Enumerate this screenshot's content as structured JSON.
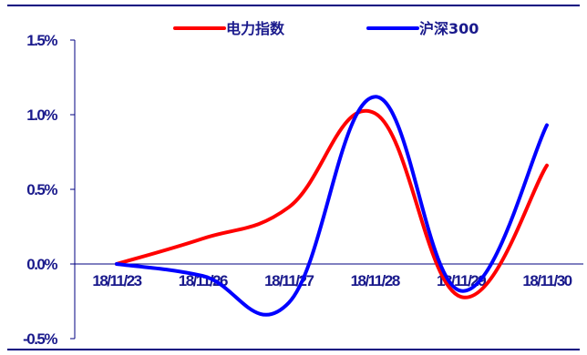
{
  "chart_data": {
    "type": "line",
    "categories": [
      "18/11/23",
      "18/11/26",
      "18/11/27",
      "18/11/28",
      "18/11/29",
      "18/11/30"
    ],
    "series": [
      {
        "name": "电力指数",
        "color": "#ff0000",
        "values": [
          0.0,
          0.17,
          0.38,
          1.01,
          -0.22,
          0.66
        ]
      },
      {
        "name": "沪深300",
        "color": "#0000ff",
        "values": [
          0.0,
          -0.08,
          -0.26,
          1.12,
          -0.18,
          0.93
        ]
      }
    ],
    "ylim": [
      -0.5,
      1.5
    ],
    "yticks": [
      "-0.5%",
      "0.0%",
      "0.5%",
      "1.0%",
      "1.5%"
    ],
    "title": "",
    "xlabel": "",
    "ylabel": "",
    "legend_position": "top",
    "grid": false,
    "frame_color": "#000080"
  }
}
